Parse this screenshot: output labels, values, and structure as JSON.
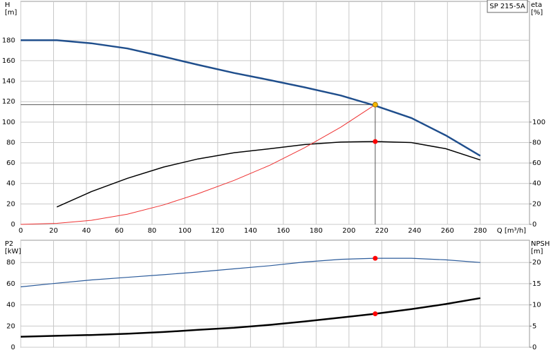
{
  "chart_data": [
    {
      "type": "line",
      "label": "SP 215-5A",
      "ylabel": [
        "H",
        "[m]"
      ],
      "y2label": [
        "eta",
        "[%]"
      ],
      "xlabel": "Q [m³/h]",
      "xlim": [
        0,
        310
      ],
      "ylim": [
        0,
        218
      ],
      "y2lim": [
        0,
        218
      ],
      "xticks": [
        0,
        20,
        40,
        60,
        80,
        100,
        120,
        140,
        160,
        180,
        200,
        220,
        240,
        260,
        280
      ],
      "yticks": [
        0,
        20,
        40,
        60,
        80,
        100,
        120,
        140,
        160,
        180
      ],
      "y2ticks": [
        0,
        20,
        40,
        60,
        80,
        100
      ],
      "show_xtick_labels": true,
      "grid": true,
      "series": [
        {
          "x": [
            0,
            22,
            43,
            65,
            87,
            108,
            130,
            152,
            173,
            195,
            216,
            238,
            259,
            280
          ],
          "values": [
            180,
            180,
            177,
            172,
            164,
            156,
            148,
            141,
            134,
            126,
            116,
            104,
            87,
            67
          ],
          "color": "#1f4e8c",
          "width": 2.5
        },
        {
          "x": [
            22,
            43,
            65,
            87,
            108,
            130,
            152,
            173,
            195,
            216,
            238,
            259,
            280
          ],
          "values": [
            17,
            32,
            45,
            56,
            64,
            70,
            74,
            78,
            80.5,
            81,
            80,
            74,
            63
          ],
          "color": "#000000",
          "width": 1.5,
          "axis": "y2"
        },
        {
          "x": [
            0,
            22,
            43,
            65,
            87,
            108,
            130,
            152,
            173,
            195,
            216
          ],
          "values": [
            0,
            1,
            4,
            10,
            19,
            30,
            43,
            58,
            75,
            95,
            117
          ],
          "color": "#ee3030",
          "width": 1
        }
      ],
      "markers": [
        {
          "x": 216,
          "y": 117,
          "color": "#f5b800",
          "crosshair": true
        },
        {
          "x": 216,
          "y": 81,
          "color": "#ff0000",
          "axis": "y2"
        }
      ]
    },
    {
      "type": "line",
      "ylabel": [
        "P2",
        "[kW]"
      ],
      "y2label": [
        "NPSH",
        "[m]"
      ],
      "xlim": [
        0,
        310
      ],
      "ylim": [
        0,
        101
      ],
      "y2lim": [
        0,
        25.25
      ],
      "xticks": [
        0,
        20,
        40,
        60,
        80,
        100,
        120,
        140,
        160,
        180,
        200,
        220,
        240,
        260,
        280
      ],
      "yticks": [
        0,
        20,
        40,
        60,
        80
      ],
      "y2ticks": [
        0,
        5,
        10,
        15,
        20
      ],
      "show_xtick_labels": false,
      "grid": true,
      "series": [
        {
          "x": [
            0,
            22,
            43,
            65,
            87,
            108,
            130,
            152,
            173,
            195,
            216,
            238,
            259,
            280
          ],
          "values": [
            57,
            60.5,
            63.5,
            66,
            68.5,
            71,
            74,
            77,
            80.5,
            83,
            84,
            84,
            82.5,
            80
          ],
          "color": "#2a5a9a",
          "width": 1.2
        },
        {
          "x": [
            0,
            22,
            43,
            65,
            87,
            108,
            130,
            152,
            173,
            195,
            216,
            238,
            259,
            280
          ],
          "values": [
            2.5,
            2.7,
            2.9,
            3.2,
            3.6,
            4.1,
            4.6,
            5.3,
            6.1,
            7,
            7.9,
            9,
            10.2,
            11.6
          ],
          "color": "#000000",
          "width": 2.5,
          "axis": "y2"
        }
      ],
      "markers": [
        {
          "x": 216,
          "y": 84,
          "color": "#ff0000"
        },
        {
          "x": 216,
          "y": 7.9,
          "color": "#ff0000",
          "axis": "y2"
        }
      ]
    }
  ]
}
